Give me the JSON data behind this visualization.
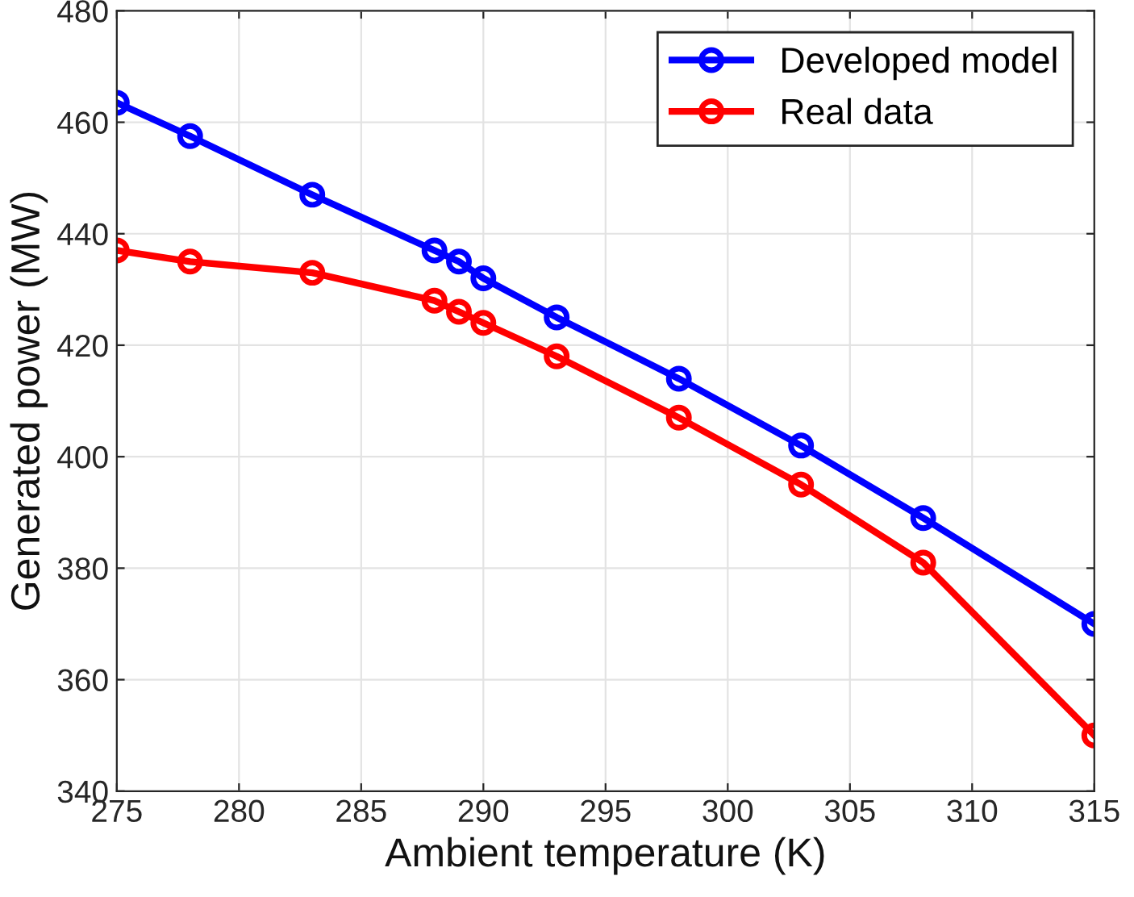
{
  "chart_data": {
    "type": "line",
    "xlabel": "Ambient temperature (K)",
    "ylabel": "Generated power (MW)",
    "x": [
      275,
      278,
      283,
      288,
      289,
      290,
      293,
      298,
      303,
      308,
      315
    ],
    "series": [
      {
        "name": "Developed model",
        "color": "#0000ff",
        "values": [
          463.5,
          457.5,
          447,
          437,
          435,
          432,
          425,
          414,
          402,
          389,
          370
        ]
      },
      {
        "name": "Real data",
        "color": "#ff0000",
        "values": [
          437,
          435,
          433,
          428,
          426,
          424,
          418,
          407,
          395,
          381,
          350
        ]
      }
    ],
    "xlim": [
      275,
      315
    ],
    "xticks": [
      275,
      280,
      285,
      290,
      295,
      300,
      305,
      310,
      315
    ],
    "ylim": [
      340,
      480
    ],
    "yticks": [
      340,
      360,
      380,
      400,
      420,
      440,
      460,
      480
    ],
    "grid": true,
    "legend": "top right",
    "marker": "circle",
    "line_style": "solid"
  }
}
